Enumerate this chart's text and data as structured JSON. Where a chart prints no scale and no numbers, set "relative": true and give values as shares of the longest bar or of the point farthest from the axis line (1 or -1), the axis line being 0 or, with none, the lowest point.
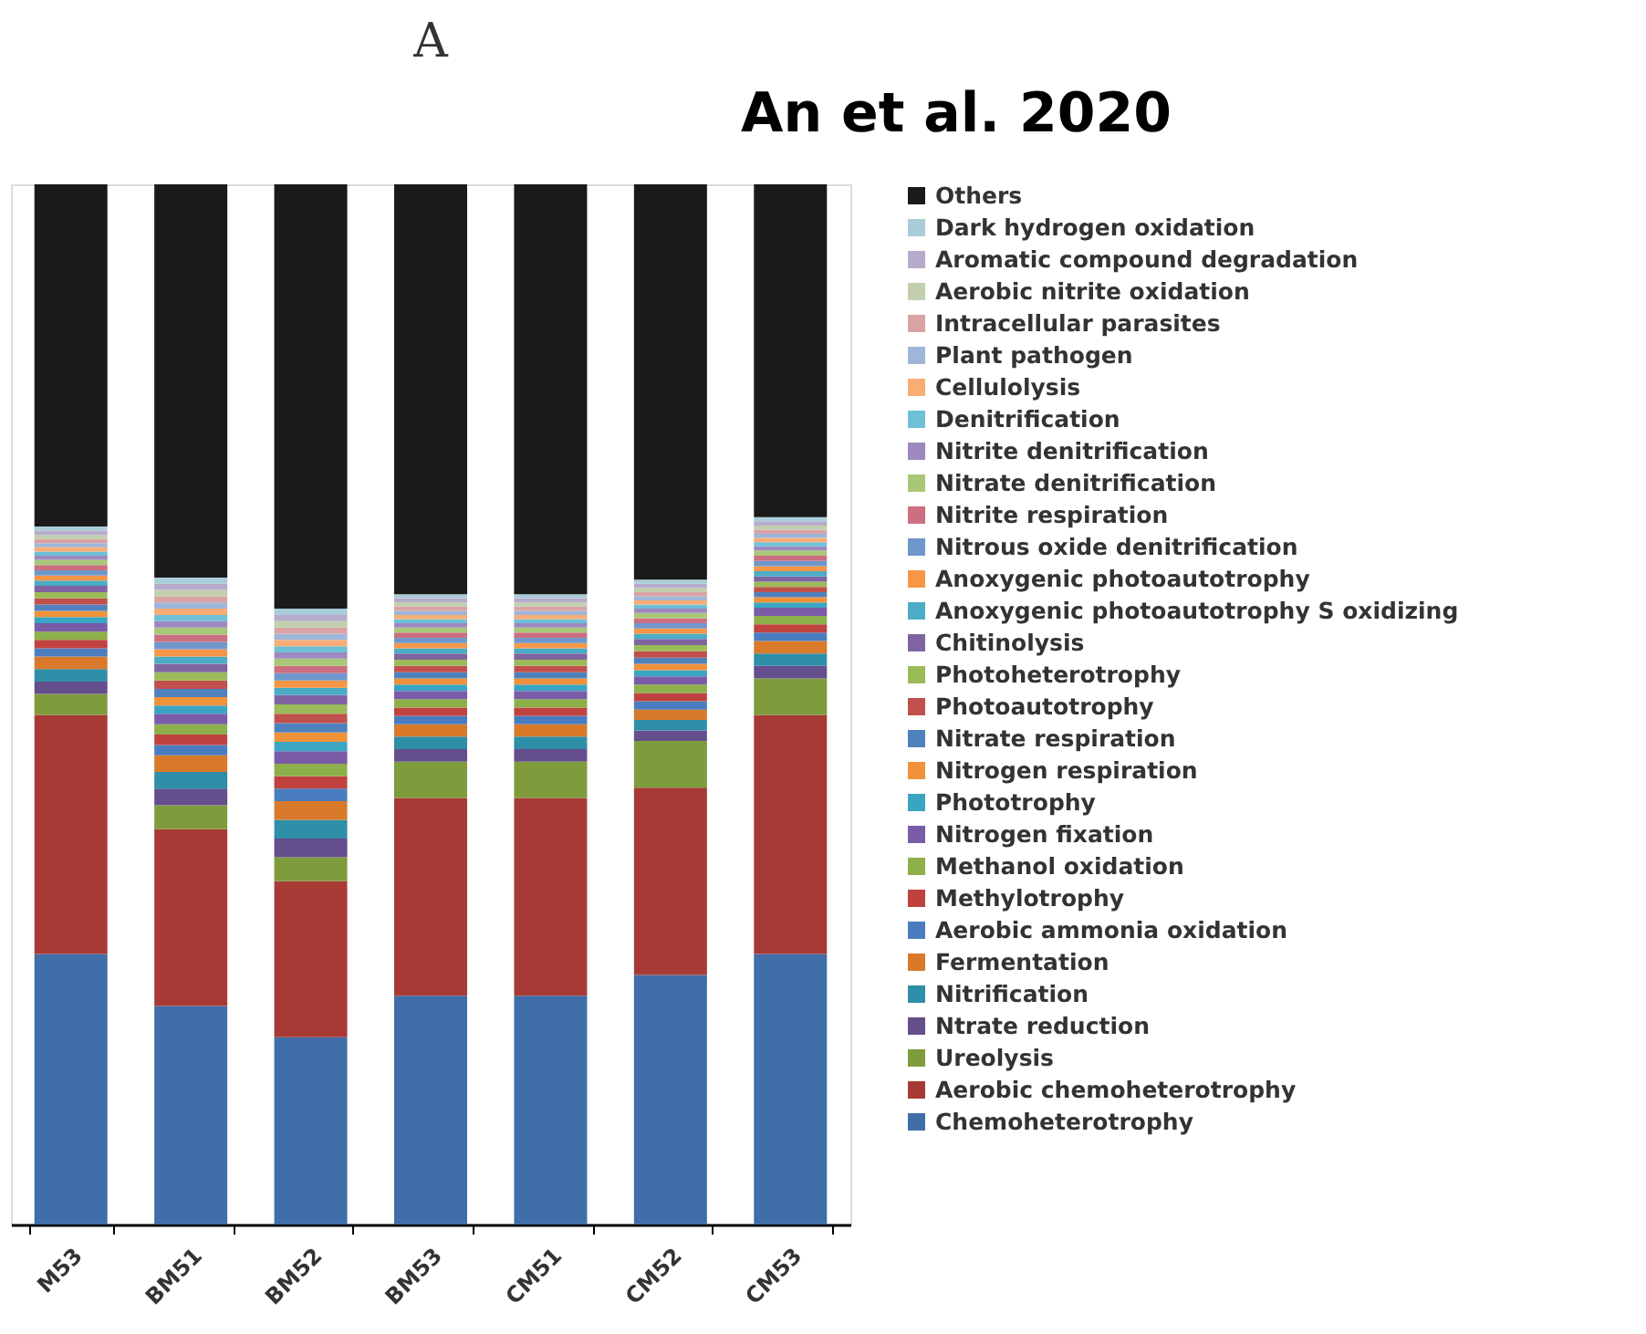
{
  "chart_data": {
    "type": "bar",
    "title": "A",
    "annotations": [
      "An et al. 2020"
    ],
    "stacked": true,
    "relative": true,
    "legend": "right",
    "grid": false,
    "categories": [
      "M53",
      "BM51",
      "BM52",
      "BM53",
      "CM51",
      "CM52",
      "CM53"
    ],
    "series": [
      {
        "name": "Chemoheterotrophy",
        "color": "#3f6ea8",
        "values": [
          0.26,
          0.21,
          0.18,
          0.22,
          0.22,
          0.24,
          0.26
        ]
      },
      {
        "name": "Aerobic chemoheterotrophy",
        "color": "#a83a36",
        "values": [
          0.23,
          0.17,
          0.15,
          0.19,
          0.19,
          0.18,
          0.23
        ]
      },
      {
        "name": "Ureolysis",
        "color": "#7f9c3d",
        "values": [
          0.02,
          0.023,
          0.023,
          0.035,
          0.035,
          0.045,
          0.035
        ]
      },
      {
        "name": "Ntrate reduction",
        "color": "#644e8c",
        "values": [
          0.012,
          0.016,
          0.018,
          0.012,
          0.012,
          0.01,
          0.012
        ]
      },
      {
        "name": "Nitrification",
        "color": "#2f8ea8",
        "values": [
          0.012,
          0.016,
          0.018,
          0.012,
          0.012,
          0.01,
          0.012
        ]
      },
      {
        "name": "Fermentation",
        "color": "#d97a2b",
        "values": [
          0.012,
          0.016,
          0.018,
          0.012,
          0.012,
          0.01,
          0.012
        ]
      },
      {
        "name": "Aerobic ammonia oxidation",
        "color": "#4a7dc0",
        "values": [
          0.008,
          0.01,
          0.012,
          0.008,
          0.008,
          0.008,
          0.008
        ]
      },
      {
        "name": "Methylotrophy",
        "color": "#c0423f",
        "values": [
          0.008,
          0.01,
          0.012,
          0.008,
          0.008,
          0.008,
          0.008
        ]
      },
      {
        "name": "Methanol oxidation",
        "color": "#8db04a",
        "values": [
          0.008,
          0.01,
          0.012,
          0.008,
          0.008,
          0.008,
          0.008
        ]
      },
      {
        "name": "Nitrogen fixation",
        "color": "#7a5ba8",
        "values": [
          0.008,
          0.01,
          0.012,
          0.008,
          0.008,
          0.008,
          0.008
        ]
      },
      {
        "name": "Phototrophy",
        "color": "#3aa5c2",
        "values": [
          0.006,
          0.008,
          0.009,
          0.006,
          0.006,
          0.006,
          0.005
        ]
      },
      {
        "name": "Nitrogen respiration",
        "color": "#f0923a",
        "values": [
          0.006,
          0.008,
          0.009,
          0.006,
          0.006,
          0.006,
          0.005
        ]
      },
      {
        "name": "Nitrate respiration",
        "color": "#4f81bd",
        "values": [
          0.006,
          0.008,
          0.009,
          0.006,
          0.006,
          0.006,
          0.005
        ]
      },
      {
        "name": "Photoautotrophy",
        "color": "#c0504d",
        "values": [
          0.006,
          0.008,
          0.009,
          0.006,
          0.006,
          0.006,
          0.005
        ]
      },
      {
        "name": "Photoheterotrophy",
        "color": "#9bbb59",
        "values": [
          0.006,
          0.008,
          0.009,
          0.006,
          0.006,
          0.006,
          0.005
        ]
      },
      {
        "name": "Chitinolysis",
        "color": "#8064a2",
        "values": [
          0.006,
          0.008,
          0.009,
          0.006,
          0.006,
          0.006,
          0.005
        ]
      },
      {
        "name": "Anoxygenic photoautotrophy S oxidizing",
        "color": "#4bacc6",
        "values": [
          0.005,
          0.007,
          0.007,
          0.005,
          0.005,
          0.005,
          0.005
        ]
      },
      {
        "name": "Anoxygenic photoautotrophy",
        "color": "#f79646",
        "values": [
          0.005,
          0.007,
          0.007,
          0.005,
          0.005,
          0.005,
          0.005
        ]
      },
      {
        "name": "Nitrous oxide denitrification",
        "color": "#6f97cc",
        "values": [
          0.005,
          0.007,
          0.007,
          0.005,
          0.005,
          0.005,
          0.005
        ]
      },
      {
        "name": "Nitrite respiration",
        "color": "#cc6f80",
        "values": [
          0.005,
          0.007,
          0.007,
          0.005,
          0.005,
          0.005,
          0.005
        ]
      },
      {
        "name": "Nitrate denitrification",
        "color": "#a8c878",
        "values": [
          0.005,
          0.007,
          0.007,
          0.005,
          0.005,
          0.005,
          0.005
        ]
      },
      {
        "name": "Nitrite denitrification",
        "color": "#9d88bf",
        "values": [
          0.004,
          0.006,
          0.006,
          0.004,
          0.004,
          0.004,
          0.004
        ]
      },
      {
        "name": "Denitrification",
        "color": "#6ec0d6",
        "values": [
          0.004,
          0.006,
          0.006,
          0.004,
          0.004,
          0.004,
          0.004
        ]
      },
      {
        "name": "Cellulolysis",
        "color": "#f9ad75",
        "values": [
          0.004,
          0.006,
          0.006,
          0.004,
          0.004,
          0.004,
          0.004
        ]
      },
      {
        "name": "Plant pathogen",
        "color": "#9fb6d8",
        "values": [
          0.004,
          0.006,
          0.006,
          0.004,
          0.004,
          0.004,
          0.004
        ]
      },
      {
        "name": "Intracellular parasites",
        "color": "#d9a3a4",
        "values": [
          0.004,
          0.006,
          0.006,
          0.004,
          0.004,
          0.004,
          0.004
        ]
      },
      {
        "name": "Aerobic nitrite oxidation",
        "color": "#c1cfae",
        "values": [
          0.004,
          0.006,
          0.006,
          0.004,
          0.004,
          0.004,
          0.004
        ]
      },
      {
        "name": "Aromatic compound degradation",
        "color": "#b7abcb",
        "values": [
          0.004,
          0.006,
          0.006,
          0.004,
          0.004,
          0.004,
          0.004
        ]
      },
      {
        "name": "Dark hydrogen oxidation",
        "color": "#a9cdd8",
        "values": [
          0.004,
          0.006,
          0.006,
          0.004,
          0.004,
          0.004,
          0.004
        ]
      },
      {
        "name": "Others",
        "color": "#1a1a1a",
        "values": [
          0.329,
          0.378,
          0.408,
          0.394,
          0.394,
          0.38,
          0.32
        ]
      }
    ]
  }
}
